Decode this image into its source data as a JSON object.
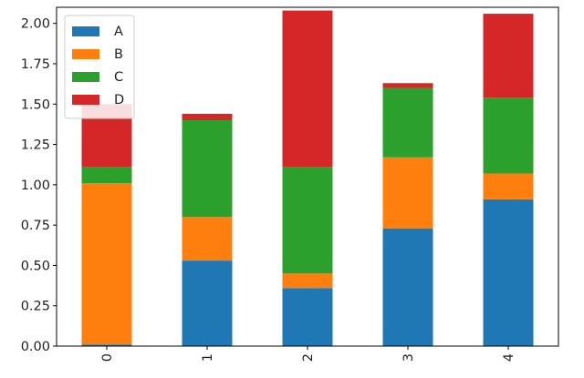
{
  "chart_data": {
    "type": "bar",
    "stacked": true,
    "categories": [
      "0",
      "1",
      "2",
      "3",
      "4"
    ],
    "series": [
      {
        "name": "A",
        "color": "#1f77b4",
        "values": [
          0.01,
          0.53,
          0.36,
          0.73,
          0.91
        ]
      },
      {
        "name": "B",
        "color": "#ff7f0e",
        "values": [
          1.0,
          0.27,
          0.09,
          0.44,
          0.16
        ]
      },
      {
        "name": "C",
        "color": "#2ca02c",
        "values": [
          0.1,
          0.6,
          0.66,
          0.43,
          0.47
        ]
      },
      {
        "name": "D",
        "color": "#d62728",
        "values": [
          0.39,
          0.04,
          0.97,
          0.03,
          0.52
        ]
      }
    ],
    "title": "",
    "xlabel": "",
    "ylabel": "",
    "ylim": [
      0,
      2.1
    ],
    "yticks": [
      "0.00",
      "0.25",
      "0.50",
      "0.75",
      "1.00",
      "1.25",
      "1.50",
      "1.75",
      "2.00"
    ],
    "xtick_rotation": "vertical",
    "legend": {
      "placement": "top-left",
      "entries": [
        "A",
        "B",
        "C",
        "D"
      ]
    },
    "grid": false
  }
}
